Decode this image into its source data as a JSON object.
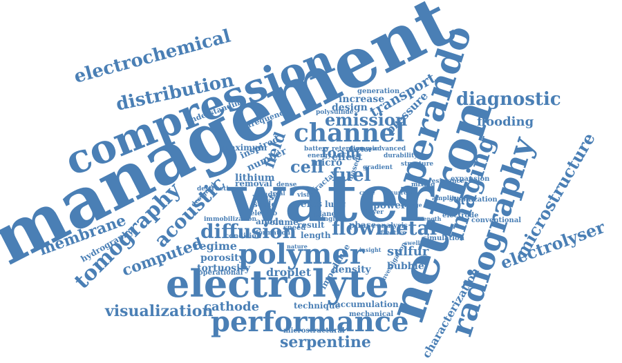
{
  "colors": {
    "word": "#4a7fb5",
    "background": "#ffffff"
  },
  "words": [
    "management",
    "water",
    "neutron",
    "compression",
    "electrolyte",
    "operando",
    "performance",
    "radiography",
    "polymer",
    "channel",
    "imaging",
    "tomography",
    "diffusion",
    "flowmetal",
    "electrochemical",
    "distribution",
    "diagnostic",
    "microstructure",
    "electrolyser",
    "membrane",
    "acoustic",
    "emission",
    "foam",
    "cell",
    "fuel",
    "field",
    "transport",
    "flooding",
    "visualization",
    "serpentine",
    "computed",
    "cathode",
    "characterization",
    "sulfur",
    "regime",
    "porosity",
    "tortuosity",
    "droplet",
    "density",
    "bubble",
    "pressure",
    "design",
    "increase",
    "hydrography",
    "technique",
    "accumulation",
    "mechanical",
    "microstructural",
    "understanding",
    "frequency",
    "lithium",
    "effect",
    "factor",
    "micro",
    "maximum",
    "inspired",
    "number",
    "expansion",
    "stabilization",
    "simulation",
    "electrode",
    "conventional",
    "result",
    "length",
    "phase",
    "power",
    "anode",
    "scale",
    "volume",
    "speed",
    "condition",
    "operational",
    "immobilization",
    "destructive",
    "designed",
    "impedance",
    "investigation",
    "generation",
    "polysulfide",
    "dynamic",
    "advanced",
    "retention",
    "durability",
    "energy",
    "battery",
    "mas",
    "electro",
    "study",
    "pefcs",
    "lung",
    "plane",
    "analysis",
    "single",
    "amplitude",
    "mixing",
    "resistance",
    "removal",
    "fractal",
    "structure",
    "formation",
    "gradient",
    "layer",
    "based",
    "dense",
    "strength",
    "effective",
    "visible",
    "nature",
    "insight",
    "real",
    "swelling",
    "charge",
    "current",
    "cycle"
  ]
}
